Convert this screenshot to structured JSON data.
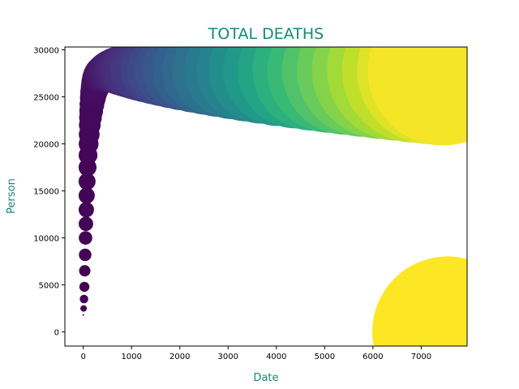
{
  "chart_data": {
    "type": "scatter",
    "title": "TOTAL DEATHS",
    "xlabel": "Date",
    "ylabel": "Person",
    "xlim": [
      -380,
      7950
    ],
    "ylim": [
      -1500,
      30300
    ],
    "xticks": [
      0,
      1000,
      2000,
      3000,
      4000,
      5000,
      6000,
      7000
    ],
    "yticks": [
      0,
      5000,
      10000,
      15000,
      20000,
      25000,
      30000
    ],
    "grid": false,
    "legend": "none",
    "colormap": "viridis",
    "marker_size_meaning": "grows with x value",
    "points_description": "bubbles along a rising then flat curve",
    "series": [
      {
        "x": [
          0,
          8,
          16,
          24,
          32,
          40,
          48,
          56,
          64,
          72,
          80,
          90,
          100,
          112,
          124,
          136,
          150,
          165,
          180,
          200,
          220,
          245,
          270,
          300,
          340,
          380,
          430,
          480,
          540,
          600,
          680,
          760,
          850,
          950,
          1050,
          1180,
          1320,
          1480,
          1650,
          1850,
          2050,
          2300,
          2550,
          2800,
          3100,
          3400,
          3700,
          4050,
          4400,
          4750,
          5100,
          5450,
          5800,
          6150,
          6500,
          6850,
          7200,
          7450,
          7550
        ],
        "y": [
          1800,
          2500,
          3500,
          4800,
          6500,
          8200,
          10000,
          11500,
          13000,
          14500,
          16000,
          17500,
          18800,
          20000,
          21000,
          22000,
          22800,
          23500,
          24200,
          24900,
          25500,
          26000,
          26500,
          26900,
          27200,
          27400,
          27500,
          27600,
          27700,
          27750,
          27800,
          27800,
          27800,
          27800,
          27800,
          27800,
          27800,
          27800,
          27800,
          27800,
          27800,
          27800,
          27800,
          27800,
          27800,
          27800,
          27800,
          27800,
          27800,
          27800,
          27800,
          27800,
          27800,
          27800,
          27800,
          27800,
          27800,
          27800,
          0
        ]
      }
    ]
  },
  "colors": {
    "title": "#148a78",
    "axis_title": "#148a78",
    "axis_line": "#000000",
    "background": "#ffffff"
  }
}
